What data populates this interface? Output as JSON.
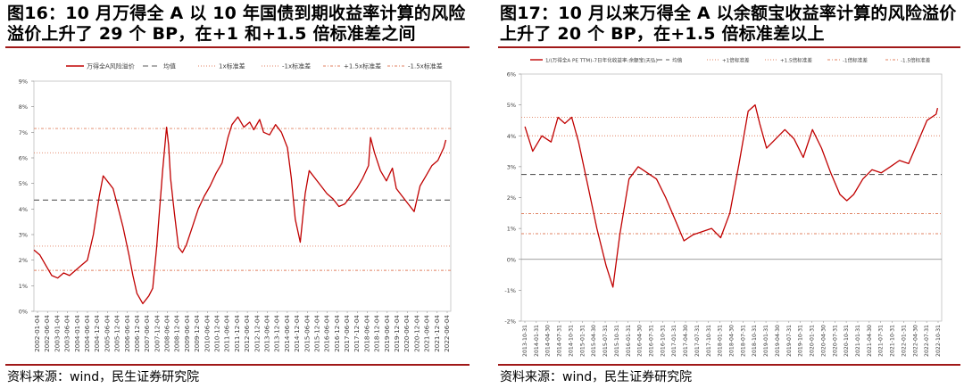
{
  "figures": [
    {
      "title": "图16：10 月万得全 A 以 10 年国债到期收益率计算的风险溢价上升了 29 个 BP，在+1 和+1.5 倍标准差之间",
      "source": "资料来源：wind，民生证券研究院"
    },
    {
      "title": "图17：10 月以来万得全 A 以余额宝收益率计算的风险溢价上升了 20 个 BP，在+1.5 倍标准差以上",
      "source": "资料来源：wind，民生证券研究院"
    }
  ],
  "chart_data": [
    {
      "type": "line",
      "title": "",
      "ylim": [
        0,
        9
      ],
      "yticks": [
        "0%",
        "1%",
        "2%",
        "3%",
        "4%",
        "5%",
        "6%",
        "7%",
        "8%",
        "9%"
      ],
      "xticks": [
        "2002-01-04",
        "2002-06-04",
        "2003-01-04",
        "2003-06-04",
        "2004-01-04",
        "2004-06-04",
        "2004-12-04",
        "2005-06-04",
        "2005-12-04",
        "2006-06-04",
        "2006-12-04",
        "2007-06-04",
        "2007-12-04",
        "2008-06-04",
        "2008-12-04",
        "2009-06-04",
        "2009-12-04",
        "2010-06-04",
        "2010-12-04",
        "2011-06-04",
        "2011-12-04",
        "2012-06-04",
        "2012-12-04",
        "2013-06-04",
        "2013-12-04",
        "2014-06-04",
        "2014-12-04",
        "2015-06-04",
        "2015-12-04",
        "2016-06-04",
        "2016-12-04",
        "2017-06-04",
        "2017-12-04",
        "2018-06-04",
        "2018-12-04",
        "2019-06-04",
        "2019-12-04",
        "2020-06-04",
        "2020-12-04",
        "2021-06-04",
        "2021-12-04",
        "2022-06-04"
      ],
      "legend": [
        "万得全A风险溢价",
        "均值",
        "1x标准差",
        "-1x标准差",
        "+1.5x标准差",
        "-1.5x标准差"
      ],
      "series": [
        {
          "name": "万得全A风险溢价",
          "color": "#c00000",
          "x": [
            2002.0,
            2002.3,
            2002.6,
            2002.9,
            2003.2,
            2003.5,
            2003.8,
            2004.1,
            2004.4,
            2004.7,
            2005.0,
            2005.3,
            2005.5,
            2005.8,
            2006.0,
            2006.2,
            2006.5,
            2006.8,
            2007.0,
            2007.2,
            2007.5,
            2007.8,
            2008.0,
            2008.2,
            2008.5,
            2008.7,
            2008.8,
            2008.9,
            2009.1,
            2009.3,
            2009.5,
            2009.7,
            2010.0,
            2010.3,
            2010.6,
            2010.9,
            2011.2,
            2011.5,
            2011.8,
            2012.0,
            2012.3,
            2012.6,
            2012.9,
            2013.1,
            2013.4,
            2013.6,
            2013.9,
            2014.2,
            2014.5,
            2014.8,
            2015.0,
            2015.2,
            2015.45,
            2015.7,
            2015.9,
            2016.2,
            2016.5,
            2016.8,
            2017.1,
            2017.4,
            2017.7,
            2018.0,
            2018.3,
            2018.6,
            2018.9,
            2019.0,
            2019.2,
            2019.5,
            2019.8,
            2020.1,
            2020.3,
            2020.6,
            2020.9,
            2021.2,
            2021.5,
            2021.8,
            2022.1,
            2022.4,
            2022.7,
            2022.8
          ],
          "y": [
            2.4,
            2.2,
            1.8,
            1.4,
            1.3,
            1.5,
            1.4,
            1.6,
            1.8,
            2.0,
            3.0,
            4.5,
            5.3,
            5.0,
            4.8,
            4.2,
            3.3,
            2.2,
            1.4,
            0.7,
            0.3,
            0.6,
            0.9,
            2.5,
            5.5,
            7.2,
            6.5,
            5.2,
            3.8,
            2.5,
            2.3,
            2.6,
            3.3,
            4.0,
            4.5,
            4.9,
            5.4,
            5.8,
            6.8,
            7.3,
            7.6,
            7.2,
            7.4,
            7.1,
            7.5,
            7.0,
            6.9,
            7.3,
            7.0,
            6.4,
            5.2,
            3.6,
            2.7,
            4.6,
            5.5,
            5.2,
            4.9,
            4.6,
            4.4,
            4.1,
            4.2,
            4.5,
            4.8,
            5.2,
            5.7,
            6.8,
            6.2,
            5.5,
            5.1,
            5.6,
            4.8,
            4.5,
            4.2,
            3.9,
            4.9,
            5.3,
            5.7,
            5.9,
            6.4,
            6.7
          ]
        },
        {
          "name": "均值",
          "value": 4.35,
          "color": "#595959",
          "dash": "6,4"
        },
        {
          "name": "1x标准差",
          "value": 6.2,
          "color": "#e08060",
          "dash": "1,2"
        },
        {
          "name": "-1x标准差",
          "value": 2.55,
          "color": "#e08060",
          "dash": "1,2"
        },
        {
          "name": "+1.5x标准差",
          "value": 7.15,
          "color": "#e08060",
          "dash": "3,2,1,2"
        },
        {
          "name": "-1.5x标准差",
          "value": 1.6,
          "color": "#e08060",
          "dash": "3,2,1,2"
        }
      ]
    },
    {
      "type": "line",
      "title": "",
      "ylim": [
        -2,
        6
      ],
      "yticks": [
        "-2%",
        "-1%",
        "0%",
        "1%",
        "2%",
        "3%",
        "4%",
        "5%",
        "6%"
      ],
      "xticks": [
        "2013-10-31",
        "2014-01-31",
        "2014-04-30",
        "2014-07-31",
        "2014-10-31",
        "2015-01-31",
        "2015-04-30",
        "2015-07-31",
        "2015-10-31",
        "2016-01-31",
        "2016-04-30",
        "2016-07-31",
        "2016-10-31",
        "2017-01-31",
        "2017-04-30",
        "2017-07-31",
        "2017-10-31",
        "2018-01-31",
        "2018-04-30",
        "2018-07-31",
        "2018-10-31",
        "2019-01-31",
        "2019-04-30",
        "2019-07-31",
        "2019-10-31",
        "2020-01-31",
        "2020-04-30",
        "2020-07-31",
        "2020-10-31",
        "2021-01-31",
        "2021-04-30",
        "2021-07-31",
        "2021-10-31",
        "2022-01-31",
        "2022-04-30",
        "2022-07-31",
        "2022-10-31"
      ],
      "legend": [
        "1/(万得全A PE TTM)-7日年化收益率:余额宝(天弘)",
        "均值",
        "+1倍标准差",
        "+1.5倍标准差",
        "-1倍标准差",
        "-1.5倍标准差"
      ],
      "series": [
        {
          "name": "1/(万得全A PE TTM)-7日年化收益率:余额宝(天弘)",
          "color": "#c00000",
          "x": [
            2013.83,
            2014.0,
            2014.2,
            2014.4,
            2014.55,
            2014.7,
            2014.85,
            2015.0,
            2015.2,
            2015.4,
            2015.6,
            2015.75,
            2015.9,
            2016.1,
            2016.3,
            2016.5,
            2016.7,
            2016.9,
            2017.1,
            2017.3,
            2017.5,
            2017.7,
            2017.9,
            2018.1,
            2018.3,
            2018.5,
            2018.7,
            2018.85,
            2018.95,
            2019.1,
            2019.3,
            2019.5,
            2019.7,
            2019.9,
            2020.1,
            2020.3,
            2020.5,
            2020.7,
            2020.85,
            2021.0,
            2021.2,
            2021.4,
            2021.6,
            2021.8,
            2022.0,
            2022.2,
            2022.4,
            2022.6,
            2022.8,
            2022.83
          ],
          "y": [
            4.3,
            3.5,
            4.0,
            3.8,
            4.6,
            4.4,
            4.6,
            3.8,
            2.4,
            1.0,
            -0.2,
            -0.9,
            0.8,
            2.6,
            3.0,
            2.8,
            2.6,
            2.0,
            1.3,
            0.6,
            0.8,
            0.9,
            1.0,
            0.7,
            1.5,
            3.1,
            4.8,
            5.0,
            4.4,
            3.6,
            3.9,
            4.2,
            3.9,
            3.3,
            4.2,
            3.6,
            2.8,
            2.1,
            1.9,
            2.1,
            2.6,
            2.9,
            2.8,
            3.0,
            3.2,
            3.1,
            3.8,
            4.5,
            4.7,
            4.9
          ]
        },
        {
          "name": "均值",
          "value": 2.75,
          "color": "#595959",
          "dash": "6,4"
        },
        {
          "name": "+1倍标准差",
          "value": 4.0,
          "color": "#e08060",
          "dash": "1,2"
        },
        {
          "name": "+1.5倍标准差",
          "value": 4.6,
          "color": "#e08060",
          "dash": "1,2"
        },
        {
          "name": "-1倍标准差",
          "value": 1.48,
          "color": "#e08060",
          "dash": "3,2,1,2"
        },
        {
          "name": "-1.5倍标准差",
          "value": 0.83,
          "color": "#e08060",
          "dash": "3,2,1,2"
        }
      ]
    }
  ]
}
